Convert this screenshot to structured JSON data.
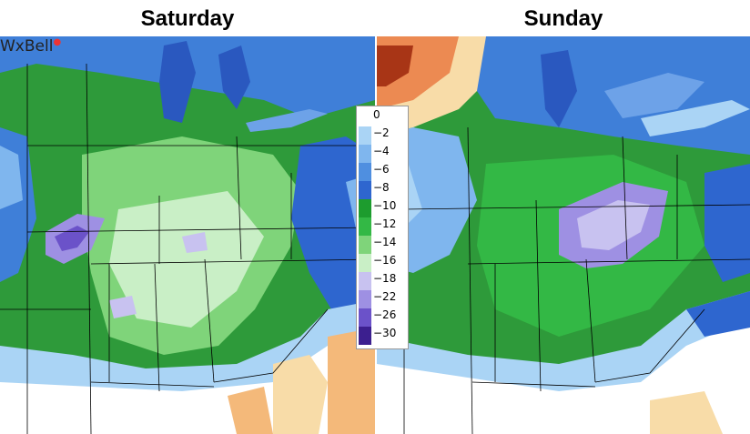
{
  "panels": [
    {
      "title": "Saturday"
    },
    {
      "title": "Sunday"
    }
  ],
  "logo": {
    "text": "WxBell"
  },
  "legend": {
    "entries": [
      {
        "label": "0",
        "color": "#ffffff"
      },
      {
        "label": "−2",
        "color": "#aad4f5"
      },
      {
        "label": "−4",
        "color": "#7fb6ee"
      },
      {
        "label": "−6",
        "color": "#4f8fe0"
      },
      {
        "label": "−8",
        "color": "#2e66cf"
      },
      {
        "label": "−10",
        "color": "#1d9c2e"
      },
      {
        "label": "−12",
        "color": "#33b845"
      },
      {
        "label": "−14",
        "color": "#7fd47a"
      },
      {
        "label": "−16",
        "color": "#c9efc6"
      },
      {
        "label": "−18",
        "color": "#c8c2f0"
      },
      {
        "label": "−22",
        "color": "#9e90e3"
      },
      {
        "label": "−26",
        "color": "#6b52c9"
      },
      {
        "label": "−30",
        "color": "#3c1f8f"
      }
    ],
    "warm_colors": [
      "#f8dca8",
      "#f4b97a",
      "#ec8a52",
      "#d55a2e",
      "#a83516"
    ]
  }
}
